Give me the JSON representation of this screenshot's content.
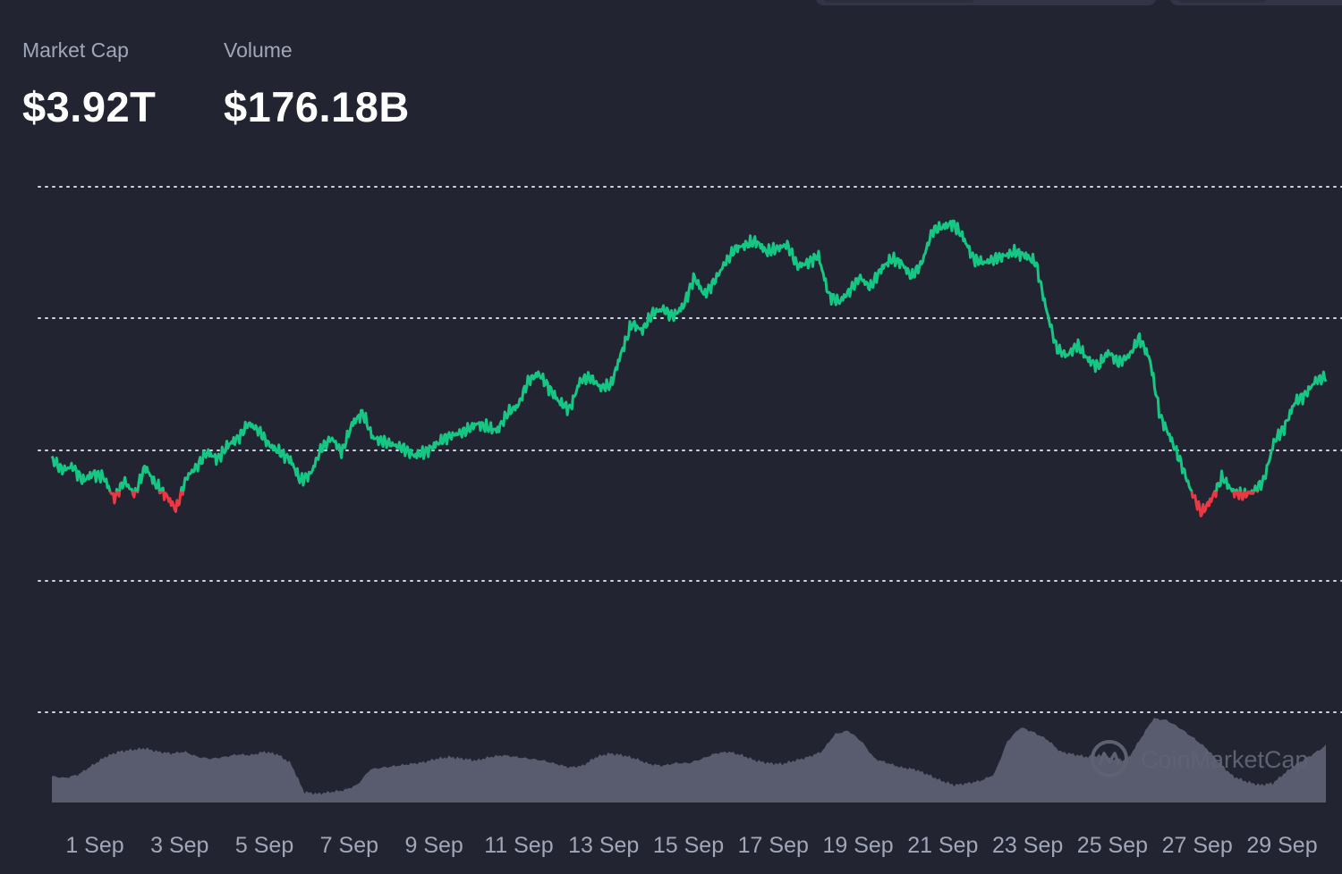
{
  "stats": {
    "market_cap_label": "Market Cap",
    "market_cap_value": "$3.92T",
    "volume_label": "Volume",
    "volume_value": "$176.18B"
  },
  "watermark": "CoinMarketCap",
  "colors": {
    "background": "#222531",
    "up": "#16c784",
    "down": "#ea3943",
    "grid": "#cfd6e4",
    "volume": "#585c6e",
    "axis_text": "#a1a7bb"
  },
  "chart_data": {
    "type": "line",
    "x_tick_labels": [
      "1 Sep",
      "3 Sep",
      "5 Sep",
      "7 Sep",
      "9 Sep",
      "11 Sep",
      "13 Sep",
      "15 Sep",
      "17 Sep",
      "19 Sep",
      "21 Sep",
      "23 Sep",
      "25 Sep",
      "27 Sep",
      "29 Sep"
    ],
    "grid": "horizontal-dotted",
    "baseline_value": 0.33,
    "series": [
      {
        "role": "price",
        "values": [
          0.42,
          0.39,
          0.4,
          0.36,
          0.38,
          0.37,
          0.31,
          0.36,
          0.32,
          0.4,
          0.35,
          0.32,
          0.28,
          0.37,
          0.4,
          0.44,
          0.42,
          0.46,
          0.48,
          0.52,
          0.5,
          0.46,
          0.44,
          0.42,
          0.36,
          0.38,
          0.45,
          0.48,
          0.44,
          0.52,
          0.55,
          0.48,
          0.47,
          0.46,
          0.45,
          0.43,
          0.44,
          0.46,
          0.48,
          0.49,
          0.5,
          0.52,
          0.51,
          0.5,
          0.55,
          0.57,
          0.64,
          0.66,
          0.62,
          0.58,
          0.56,
          0.64,
          0.65,
          0.62,
          0.63,
          0.72,
          0.8,
          0.78,
          0.83,
          0.84,
          0.82,
          0.85,
          0.93,
          0.88,
          0.92,
          0.97,
          1.01,
          1.02,
          1.03,
          1.0,
          1.01,
          1.02,
          0.96,
          0.97,
          0.99,
          0.88,
          0.86,
          0.89,
          0.93,
          0.9,
          0.95,
          0.98,
          0.97,
          0.93,
          0.97,
          1.06,
          1.07,
          1.08,
          1.04,
          0.98,
          0.97,
          0.98,
          0.99,
          1.0,
          0.99,
          0.97,
          0.84,
          0.73,
          0.71,
          0.74,
          0.7,
          0.68,
          0.72,
          0.69,
          0.71,
          0.76,
          0.7,
          0.54,
          0.48,
          0.41,
          0.33,
          0.27,
          0.31,
          0.37,
          0.33,
          0.32,
          0.33,
          0.36,
          0.47,
          0.51,
          0.58,
          0.6,
          0.64,
          0.65
        ]
      },
      {
        "role": "volume",
        "values": [
          0.3,
          0.28,
          0.32,
          0.42,
          0.52,
          0.58,
          0.6,
          0.62,
          0.58,
          0.56,
          0.58,
          0.52,
          0.5,
          0.52,
          0.55,
          0.54,
          0.58,
          0.55,
          0.45,
          0.12,
          0.1,
          0.12,
          0.14,
          0.2,
          0.38,
          0.4,
          0.42,
          0.44,
          0.46,
          0.5,
          0.52,
          0.5,
          0.48,
          0.52,
          0.54,
          0.52,
          0.5,
          0.48,
          0.44,
          0.4,
          0.42,
          0.52,
          0.56,
          0.54,
          0.5,
          0.44,
          0.42,
          0.45,
          0.45,
          0.5,
          0.56,
          0.58,
          0.54,
          0.48,
          0.45,
          0.44,
          0.48,
          0.52,
          0.58,
          0.78,
          0.82,
          0.7,
          0.5,
          0.45,
          0.4,
          0.38,
          0.32,
          0.25,
          0.2,
          0.22,
          0.25,
          0.32,
          0.7,
          0.86,
          0.8,
          0.72,
          0.58,
          0.55,
          0.52,
          0.54,
          0.5,
          0.48,
          0.72,
          0.96,
          0.94,
          0.85,
          0.74,
          0.62,
          0.45,
          0.3,
          0.24,
          0.2,
          0.22,
          0.35,
          0.46,
          0.55,
          0.65
        ]
      }
    ]
  }
}
